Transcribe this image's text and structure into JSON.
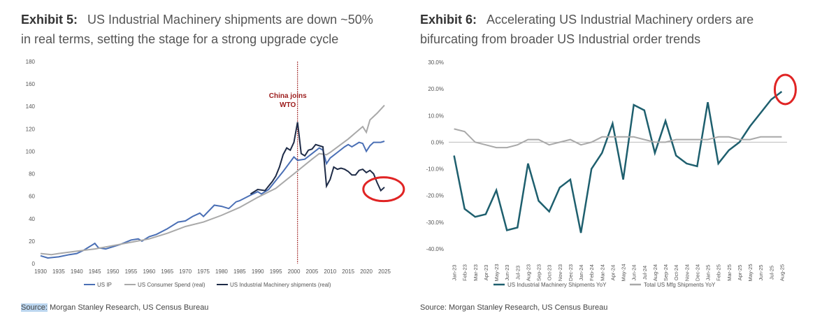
{
  "exhibit5": {
    "label": "Exhibit 5:",
    "title_line1": "US Industrial Machinery shipments are down ~50%",
    "title_line2": "in real terms, setting the stage for a strong upgrade cycle",
    "source_prefix": "Source:",
    "source_rest": " Morgan Stanley Research, US Census Bureau",
    "annotation_line1": "China joins",
    "annotation_line2": "WTO",
    "annotation_color": "#9c1c1c",
    "circle_color": "#e02424"
  },
  "exhibit6": {
    "label": "Exhibit 6:",
    "title_line1": "Accelerating US Industrial Machinery orders are",
    "title_line2": "bifurcating from broader US Industrial order trends",
    "source": "Source: Morgan Stanley Research, US Census Bureau",
    "circle_color": "#e02424"
  },
  "chart_data": [
    {
      "type": "line",
      "x": [
        1930,
        1935,
        1940,
        1945,
        1950,
        1955,
        1960,
        1965,
        1970,
        1975,
        1980,
        1985,
        1990,
        1995,
        2000,
        2005,
        2010,
        2015,
        2020,
        2025
      ],
      "xlim": [
        1930,
        2025
      ],
      "ylim": [
        0,
        180
      ],
      "yticks": [
        0,
        20,
        40,
        60,
        80,
        100,
        120,
        140,
        160,
        180
      ],
      "xticks": [
        1930,
        1935,
        1940,
        1945,
        1950,
        1955,
        1960,
        1965,
        1970,
        1975,
        1980,
        1985,
        1990,
        1995,
        2000,
        2005,
        2010,
        2015,
        2020,
        2025
      ],
      "vline_x": 2001,
      "series": [
        {
          "name": "US IP",
          "color": "#4a6fb5",
          "points": [
            [
              1930,
              7
            ],
            [
              1932,
              5
            ],
            [
              1935,
              6
            ],
            [
              1938,
              8
            ],
            [
              1940,
              9
            ],
            [
              1942,
              12
            ],
            [
              1944,
              16
            ],
            [
              1945,
              18
            ],
            [
              1946,
              14
            ],
            [
              1948,
              13
            ],
            [
              1950,
              15
            ],
            [
              1952,
              17
            ],
            [
              1955,
              21
            ],
            [
              1957,
              22
            ],
            [
              1958,
              20
            ],
            [
              1960,
              24
            ],
            [
              1962,
              26
            ],
            [
              1965,
              31
            ],
            [
              1968,
              37
            ],
            [
              1970,
              38
            ],
            [
              1972,
              42
            ],
            [
              1974,
              45
            ],
            [
              1975,
              42
            ],
            [
              1978,
              52
            ],
            [
              1980,
              51
            ],
            [
              1982,
              49
            ],
            [
              1984,
              55
            ],
            [
              1985,
              56
            ],
            [
              1988,
              61
            ],
            [
              1990,
              64
            ],
            [
              1991,
              62
            ],
            [
              1993,
              66
            ],
            [
              1995,
              74
            ],
            [
              1997,
              82
            ],
            [
              2000,
              95
            ],
            [
              2001,
              92
            ],
            [
              2003,
              93
            ],
            [
              2005,
              98
            ],
            [
              2007,
              103
            ],
            [
              2008,
              101
            ],
            [
              2009,
              89
            ],
            [
              2010,
              94
            ],
            [
              2012,
              99
            ],
            [
              2014,
              104
            ],
            [
              2015,
              106
            ],
            [
              2016,
              104
            ],
            [
              2018,
              108
            ],
            [
              2019,
              107
            ],
            [
              2020,
              100
            ],
            [
              2021,
              105
            ],
            [
              2022,
              108
            ],
            [
              2023,
              108
            ],
            [
              2024,
              108
            ],
            [
              2025,
              109
            ]
          ]
        },
        {
          "name": "US Consumer Spend (real)",
          "color": "#a9a9a9",
          "points": [
            [
              1930,
              9
            ],
            [
              1933,
              8
            ],
            [
              1935,
              9
            ],
            [
              1940,
              11
            ],
            [
              1945,
              13
            ],
            [
              1950,
              16
            ],
            [
              1955,
              19
            ],
            [
              1960,
              22
            ],
            [
              1965,
              27
            ],
            [
              1970,
              33
            ],
            [
              1975,
              37
            ],
            [
              1980,
              43
            ],
            [
              1985,
              50
            ],
            [
              1990,
              59
            ],
            [
              1995,
              67
            ],
            [
              2000,
              80
            ],
            [
              2005,
              93
            ],
            [
              2007,
              98
            ],
            [
              2009,
              97
            ],
            [
              2010,
              99
            ],
            [
              2015,
              111
            ],
            [
              2019,
              122
            ],
            [
              2020,
              117
            ],
            [
              2021,
              128
            ],
            [
              2023,
              134
            ],
            [
              2025,
              141
            ]
          ]
        },
        {
          "name": "US Industrial Machinery shipments (real)",
          "color": "#1e2b47",
          "points": [
            [
              1988,
              62
            ],
            [
              1990,
              66
            ],
            [
              1992,
              65
            ],
            [
              1994,
              73
            ],
            [
              1995,
              78
            ],
            [
              1996,
              86
            ],
            [
              1997,
              97
            ],
            [
              1998,
              103
            ],
            [
              1999,
              101
            ],
            [
              2000,
              108
            ],
            [
              2001,
              126
            ],
            [
              2002,
              98
            ],
            [
              2003,
              96
            ],
            [
              2004,
              101
            ],
            [
              2005,
              102
            ],
            [
              2006,
              106
            ],
            [
              2008,
              104
            ],
            [
              2009,
              69
            ],
            [
              2010,
              75
            ],
            [
              2011,
              86
            ],
            [
              2012,
              84
            ],
            [
              2013,
              85
            ],
            [
              2014,
              84
            ],
            [
              2015,
              82
            ],
            [
              2016,
              79
            ],
            [
              2017,
              79
            ],
            [
              2018,
              83
            ],
            [
              2019,
              84
            ],
            [
              2020,
              81
            ],
            [
              2021,
              83
            ],
            [
              2022,
              80
            ],
            [
              2023,
              72
            ],
            [
              2024,
              65
            ],
            [
              2025,
              68
            ]
          ]
        }
      ],
      "legend": "bottom"
    },
    {
      "type": "line",
      "categories": [
        "Jan-23",
        "Feb-23",
        "Mar-23",
        "Apr-23",
        "May-23",
        "Jun-23",
        "Jul-23",
        "Aug-23",
        "Sep-23",
        "Oct-23",
        "Nov-23",
        "Dec-23",
        "Jan-24",
        "Feb-24",
        "Mar-24",
        "Apr-24",
        "May-24",
        "Jun-24",
        "Jul-24",
        "Aug-24",
        "Sep-24",
        "Oct-24",
        "Nov-24",
        "Dec-24",
        "Jan-25",
        "Feb-25",
        "Mar-25",
        "Apr-25",
        "May-25",
        "Jun-25",
        "Jul-25",
        "Aug-25"
      ],
      "ylim": [
        -40,
        30
      ],
      "yticks": [
        "-40.0%",
        "-30.0%",
        "-20.0%",
        "-10.0%",
        "0.0%",
        "10.0%",
        "20.0%",
        "30.0%"
      ],
      "ytick_values": [
        -40,
        -30,
        -20,
        -10,
        0,
        10,
        20,
        30
      ],
      "series": [
        {
          "name": "US Industrial Machinery Shipments YoY",
          "color": "#1e5f6e",
          "values": [
            -5,
            -25,
            -28,
            -27,
            -18,
            -33,
            -32,
            -8,
            -22,
            -26,
            -17,
            -14,
            -34,
            -10,
            -4,
            7,
            -14,
            14,
            12,
            -4,
            8,
            -5,
            -8,
            -9,
            15,
            -8,
            -3,
            0,
            6,
            11,
            16,
            19
          ]
        },
        {
          "name": "Total US Mfg Shipments YoY",
          "color": "#a9a9a9",
          "values": [
            5,
            4,
            0,
            -1,
            -2,
            -2,
            -1,
            1,
            1,
            -1,
            0,
            1,
            -1,
            0,
            2,
            2,
            2,
            2,
            1,
            0,
            0,
            1,
            1,
            1,
            1,
            2,
            2,
            1,
            1,
            2,
            2,
            2
          ]
        }
      ],
      "legend": "bottom"
    }
  ]
}
